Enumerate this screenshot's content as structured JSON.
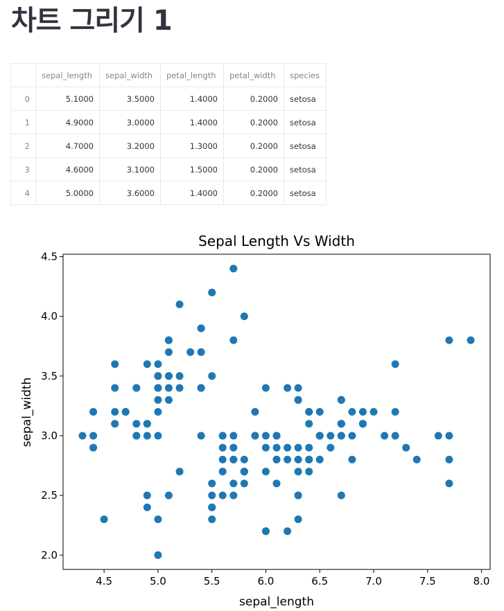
{
  "page": {
    "title": "차트 그리기 1"
  },
  "table": {
    "columns": [
      "",
      "sepal_length",
      "sepal_width",
      "petal_length",
      "petal_width",
      "species"
    ],
    "rows": [
      [
        "0",
        "5.1000",
        "3.5000",
        "1.4000",
        "0.2000",
        "setosa"
      ],
      [
        "1",
        "4.9000",
        "3.0000",
        "1.4000",
        "0.2000",
        "setosa"
      ],
      [
        "2",
        "4.7000",
        "3.2000",
        "1.3000",
        "0.2000",
        "setosa"
      ],
      [
        "3",
        "4.6000",
        "3.1000",
        "1.5000",
        "0.2000",
        "setosa"
      ],
      [
        "4",
        "5.0000",
        "3.6000",
        "1.4000",
        "0.2000",
        "setosa"
      ]
    ]
  },
  "chart_data": {
    "type": "scatter",
    "title": "Sepal Length Vs Width",
    "xlabel": "sepal_length",
    "ylabel": "sepal_width",
    "xlim": [
      4.12,
      8.08
    ],
    "ylim": [
      1.88,
      4.52
    ],
    "xticks": [
      "4.5",
      "5.0",
      "5.5",
      "6.0",
      "6.5",
      "7.0",
      "7.5",
      "8.0"
    ],
    "yticks": [
      "2.0",
      "2.5",
      "3.0",
      "3.5",
      "4.0",
      "4.5"
    ],
    "color": "#1f77b4",
    "grid": false,
    "points": [
      [
        5.1,
        3.5
      ],
      [
        4.9,
        3.0
      ],
      [
        4.7,
        3.2
      ],
      [
        4.6,
        3.1
      ],
      [
        5.0,
        3.6
      ],
      [
        5.4,
        3.9
      ],
      [
        4.6,
        3.4
      ],
      [
        5.0,
        3.4
      ],
      [
        4.4,
        2.9
      ],
      [
        4.9,
        3.1
      ],
      [
        5.4,
        3.7
      ],
      [
        4.8,
        3.4
      ],
      [
        4.8,
        3.0
      ],
      [
        4.3,
        3.0
      ],
      [
        5.8,
        4.0
      ],
      [
        5.7,
        4.4
      ],
      [
        5.4,
        3.9
      ],
      [
        5.1,
        3.5
      ],
      [
        5.7,
        3.8
      ],
      [
        5.1,
        3.8
      ],
      [
        5.4,
        3.4
      ],
      [
        5.1,
        3.7
      ],
      [
        4.6,
        3.6
      ],
      [
        5.1,
        3.3
      ],
      [
        4.8,
        3.4
      ],
      [
        5.0,
        3.0
      ],
      [
        5.0,
        3.4
      ],
      [
        5.2,
        3.5
      ],
      [
        5.2,
        3.4
      ],
      [
        4.7,
        3.2
      ],
      [
        4.8,
        3.1
      ],
      [
        5.4,
        3.4
      ],
      [
        5.2,
        4.1
      ],
      [
        5.5,
        4.2
      ],
      [
        4.9,
        3.1
      ],
      [
        5.0,
        3.2
      ],
      [
        5.5,
        3.5
      ],
      [
        4.9,
        3.6
      ],
      [
        4.4,
        3.0
      ],
      [
        5.1,
        3.4
      ],
      [
        5.0,
        3.5
      ],
      [
        4.5,
        2.3
      ],
      [
        4.4,
        3.2
      ],
      [
        5.0,
        3.5
      ],
      [
        5.1,
        3.8
      ],
      [
        4.8,
        3.0
      ],
      [
        5.1,
        3.8
      ],
      [
        4.6,
        3.2
      ],
      [
        5.3,
        3.7
      ],
      [
        5.0,
        3.3
      ],
      [
        7.0,
        3.2
      ],
      [
        6.4,
        3.2
      ],
      [
        6.9,
        3.1
      ],
      [
        5.5,
        2.3
      ],
      [
        6.5,
        2.8
      ],
      [
        5.7,
        2.8
      ],
      [
        6.3,
        3.3
      ],
      [
        4.9,
        2.4
      ],
      [
        6.6,
        2.9
      ],
      [
        5.2,
        2.7
      ],
      [
        5.0,
        2.0
      ],
      [
        5.9,
        3.0
      ],
      [
        6.0,
        2.2
      ],
      [
        6.1,
        2.9
      ],
      [
        5.6,
        2.9
      ],
      [
        6.7,
        3.1
      ],
      [
        5.6,
        3.0
      ],
      [
        5.8,
        2.7
      ],
      [
        6.2,
        2.2
      ],
      [
        5.6,
        2.5
      ],
      [
        5.9,
        3.2
      ],
      [
        6.1,
        2.8
      ],
      [
        6.3,
        2.5
      ],
      [
        6.1,
        2.8
      ],
      [
        6.4,
        2.9
      ],
      [
        6.6,
        3.0
      ],
      [
        6.8,
        2.8
      ],
      [
        6.7,
        3.0
      ],
      [
        6.0,
        2.9
      ],
      [
        5.7,
        2.6
      ],
      [
        5.5,
        2.4
      ],
      [
        5.5,
        2.4
      ],
      [
        5.8,
        2.7
      ],
      [
        6.0,
        2.7
      ],
      [
        5.4,
        3.0
      ],
      [
        6.0,
        3.4
      ],
      [
        6.7,
        3.1
      ],
      [
        6.3,
        2.3
      ],
      [
        5.6,
        3.0
      ],
      [
        5.5,
        2.5
      ],
      [
        5.5,
        2.6
      ],
      [
        6.1,
        3.0
      ],
      [
        5.8,
        2.6
      ],
      [
        5.0,
        2.3
      ],
      [
        5.6,
        2.7
      ],
      [
        5.7,
        3.0
      ],
      [
        5.7,
        2.9
      ],
      [
        6.2,
        2.9
      ],
      [
        5.1,
        2.5
      ],
      [
        5.7,
        2.8
      ],
      [
        6.3,
        3.3
      ],
      [
        5.8,
        2.7
      ],
      [
        7.1,
        3.0
      ],
      [
        6.3,
        2.9
      ],
      [
        6.5,
        3.0
      ],
      [
        7.6,
        3.0
      ],
      [
        4.9,
        2.5
      ],
      [
        7.3,
        2.9
      ],
      [
        6.7,
        2.5
      ],
      [
        7.2,
        3.6
      ],
      [
        6.5,
        3.2
      ],
      [
        6.4,
        2.7
      ],
      [
        6.8,
        3.0
      ],
      [
        5.7,
        2.5
      ],
      [
        5.8,
        2.8
      ],
      [
        6.4,
        3.2
      ],
      [
        6.5,
        3.0
      ],
      [
        7.7,
        3.8
      ],
      [
        7.7,
        2.6
      ],
      [
        6.0,
        2.2
      ],
      [
        6.9,
        3.2
      ],
      [
        5.6,
        2.8
      ],
      [
        7.7,
        2.8
      ],
      [
        6.3,
        2.7
      ],
      [
        6.7,
        3.3
      ],
      [
        7.2,
        3.2
      ],
      [
        6.2,
        2.8
      ],
      [
        6.1,
        3.0
      ],
      [
        6.4,
        2.8
      ],
      [
        7.2,
        3.0
      ],
      [
        7.4,
        2.8
      ],
      [
        7.9,
        3.8
      ],
      [
        6.4,
        2.8
      ],
      [
        6.3,
        2.8
      ],
      [
        6.1,
        2.6
      ],
      [
        7.7,
        3.0
      ],
      [
        6.3,
        3.4
      ],
      [
        6.4,
        3.1
      ],
      [
        6.0,
        3.0
      ],
      [
        6.9,
        3.1
      ],
      [
        6.7,
        3.1
      ],
      [
        6.9,
        3.1
      ],
      [
        5.8,
        2.7
      ],
      [
        6.8,
        3.2
      ],
      [
        6.7,
        3.3
      ],
      [
        6.7,
        3.0
      ],
      [
        6.3,
        2.5
      ],
      [
        6.5,
        3.0
      ],
      [
        6.2,
        3.4
      ],
      [
        5.9,
        3.0
      ]
    ]
  }
}
